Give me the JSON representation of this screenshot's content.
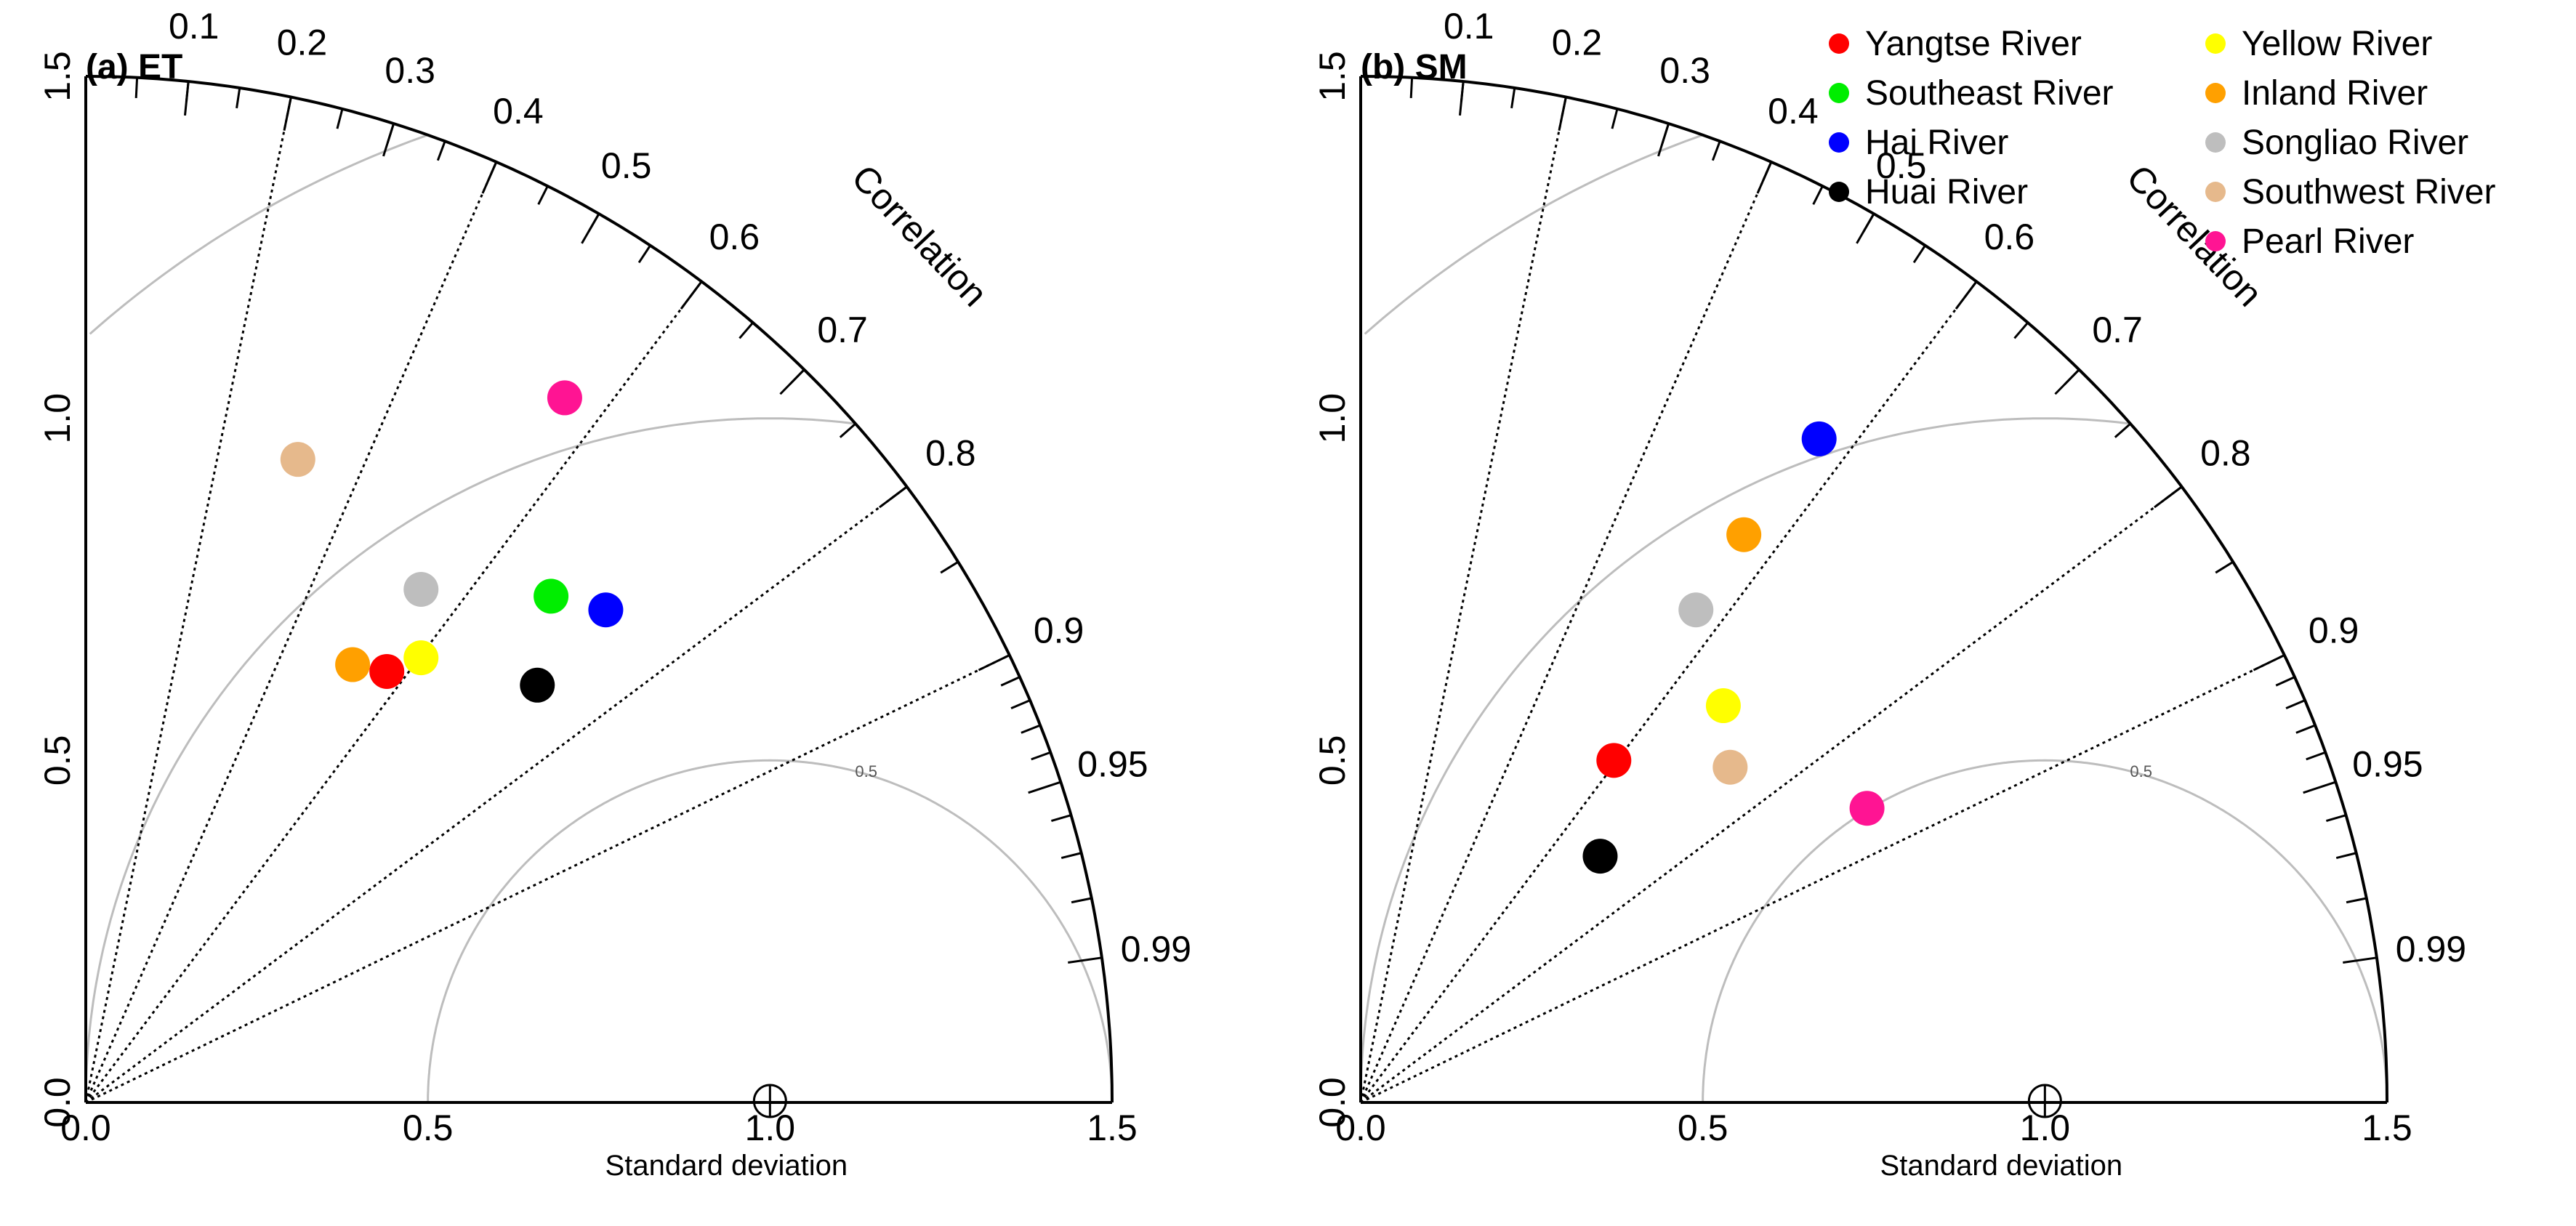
{
  "chart_data": {
    "type": "scatter",
    "subtype": "taylor-diagram",
    "panels": [
      {
        "id": "et",
        "title": "(a) ET",
        "xlabel": "Standard deviation",
        "ylabel": "",
        "sd_range": [
          0,
          1.5
        ],
        "sd_ticks": [
          "0.0",
          "0.5",
          "1.0",
          "1.5"
        ],
        "correlation_label": "Correlation",
        "correlation_ticks": [
          "0.1",
          "0.2",
          "0.3",
          "0.4",
          "0.5",
          "0.6",
          "0.7",
          "0.8",
          "0.9",
          "0.95",
          "0.99"
        ],
        "rms_contours": [
          "0.5",
          "1",
          "1.5"
        ],
        "reference_sd": 1.0,
        "points": [
          {
            "name": "Yangtse River",
            "color": "#ff0000",
            "x": 0.44,
            "y": 0.63
          },
          {
            "name": "Southeast River",
            "color": "#00ee00",
            "x": 0.68,
            "y": 0.74
          },
          {
            "name": "Hai River",
            "color": "#0000ff",
            "x": 0.76,
            "y": 0.72
          },
          {
            "name": "Huai River",
            "color": "#000000",
            "x": 0.66,
            "y": 0.61
          },
          {
            "name": "Yellow River",
            "color": "#ffff00",
            "x": 0.49,
            "y": 0.65
          },
          {
            "name": "Inland River",
            "color": "#ffa000",
            "x": 0.39,
            "y": 0.64
          },
          {
            "name": "Songliao River",
            "color": "#bebebe",
            "x": 0.49,
            "y": 0.75
          },
          {
            "name": "Southwest River",
            "color": "#e6b98c",
            "x": 0.31,
            "y": 0.94
          },
          {
            "name": "Pearl River",
            "color": "#ff1493",
            "x": 0.7,
            "y": 1.03
          }
        ]
      },
      {
        "id": "sm",
        "title": "(b) SM",
        "xlabel": "Standard deviation",
        "ylabel": "",
        "sd_range": [
          0,
          1.5
        ],
        "sd_ticks": [
          "0.0",
          "0.5",
          "1.0",
          "1.5"
        ],
        "correlation_label": "Correlation",
        "correlation_ticks": [
          "0.1",
          "0.2",
          "0.3",
          "0.4",
          "0.5",
          "0.6",
          "0.7",
          "0.8",
          "0.9",
          "0.95",
          "0.99"
        ],
        "rms_contours": [
          "0.5",
          "1",
          "1.5"
        ],
        "reference_sd": 1.0,
        "points": [
          {
            "name": "Yangtse River",
            "color": "#ff0000",
            "x": 0.37,
            "y": 0.5
          },
          {
            "name": "Hai River",
            "color": "#0000ff",
            "x": 0.67,
            "y": 0.97
          },
          {
            "name": "Huai River",
            "color": "#000000",
            "x": 0.35,
            "y": 0.36
          },
          {
            "name": "Yellow River",
            "color": "#ffff00",
            "x": 0.53,
            "y": 0.58
          },
          {
            "name": "Inland River",
            "color": "#ffa000",
            "x": 0.56,
            "y": 0.83
          },
          {
            "name": "Songliao River",
            "color": "#bebebe",
            "x": 0.49,
            "y": 0.72
          },
          {
            "name": "Southwest River",
            "color": "#e6b98c",
            "x": 0.54,
            "y": 0.49
          },
          {
            "name": "Pearl River",
            "color": "#ff1493",
            "x": 0.74,
            "y": 0.43
          }
        ]
      }
    ],
    "legend": {
      "placement": "top-right",
      "entries": [
        {
          "label": "Yangtse River",
          "color": "#ff0000"
        },
        {
          "label": "Southeast River",
          "color": "#00ee00"
        },
        {
          "label": "Hai River",
          "color": "#0000ff"
        },
        {
          "label": "Huai River",
          "color": "#000000"
        },
        {
          "label": "Yellow River",
          "color": "#ffff00"
        },
        {
          "label": "Inland River",
          "color": "#ffa000"
        },
        {
          "label": "Songliao River",
          "color": "#bebebe"
        },
        {
          "label": "Southwest River",
          "color": "#e6b98c"
        },
        {
          "label": "Pearl River",
          "color": "#ff1493"
        }
      ]
    }
  }
}
